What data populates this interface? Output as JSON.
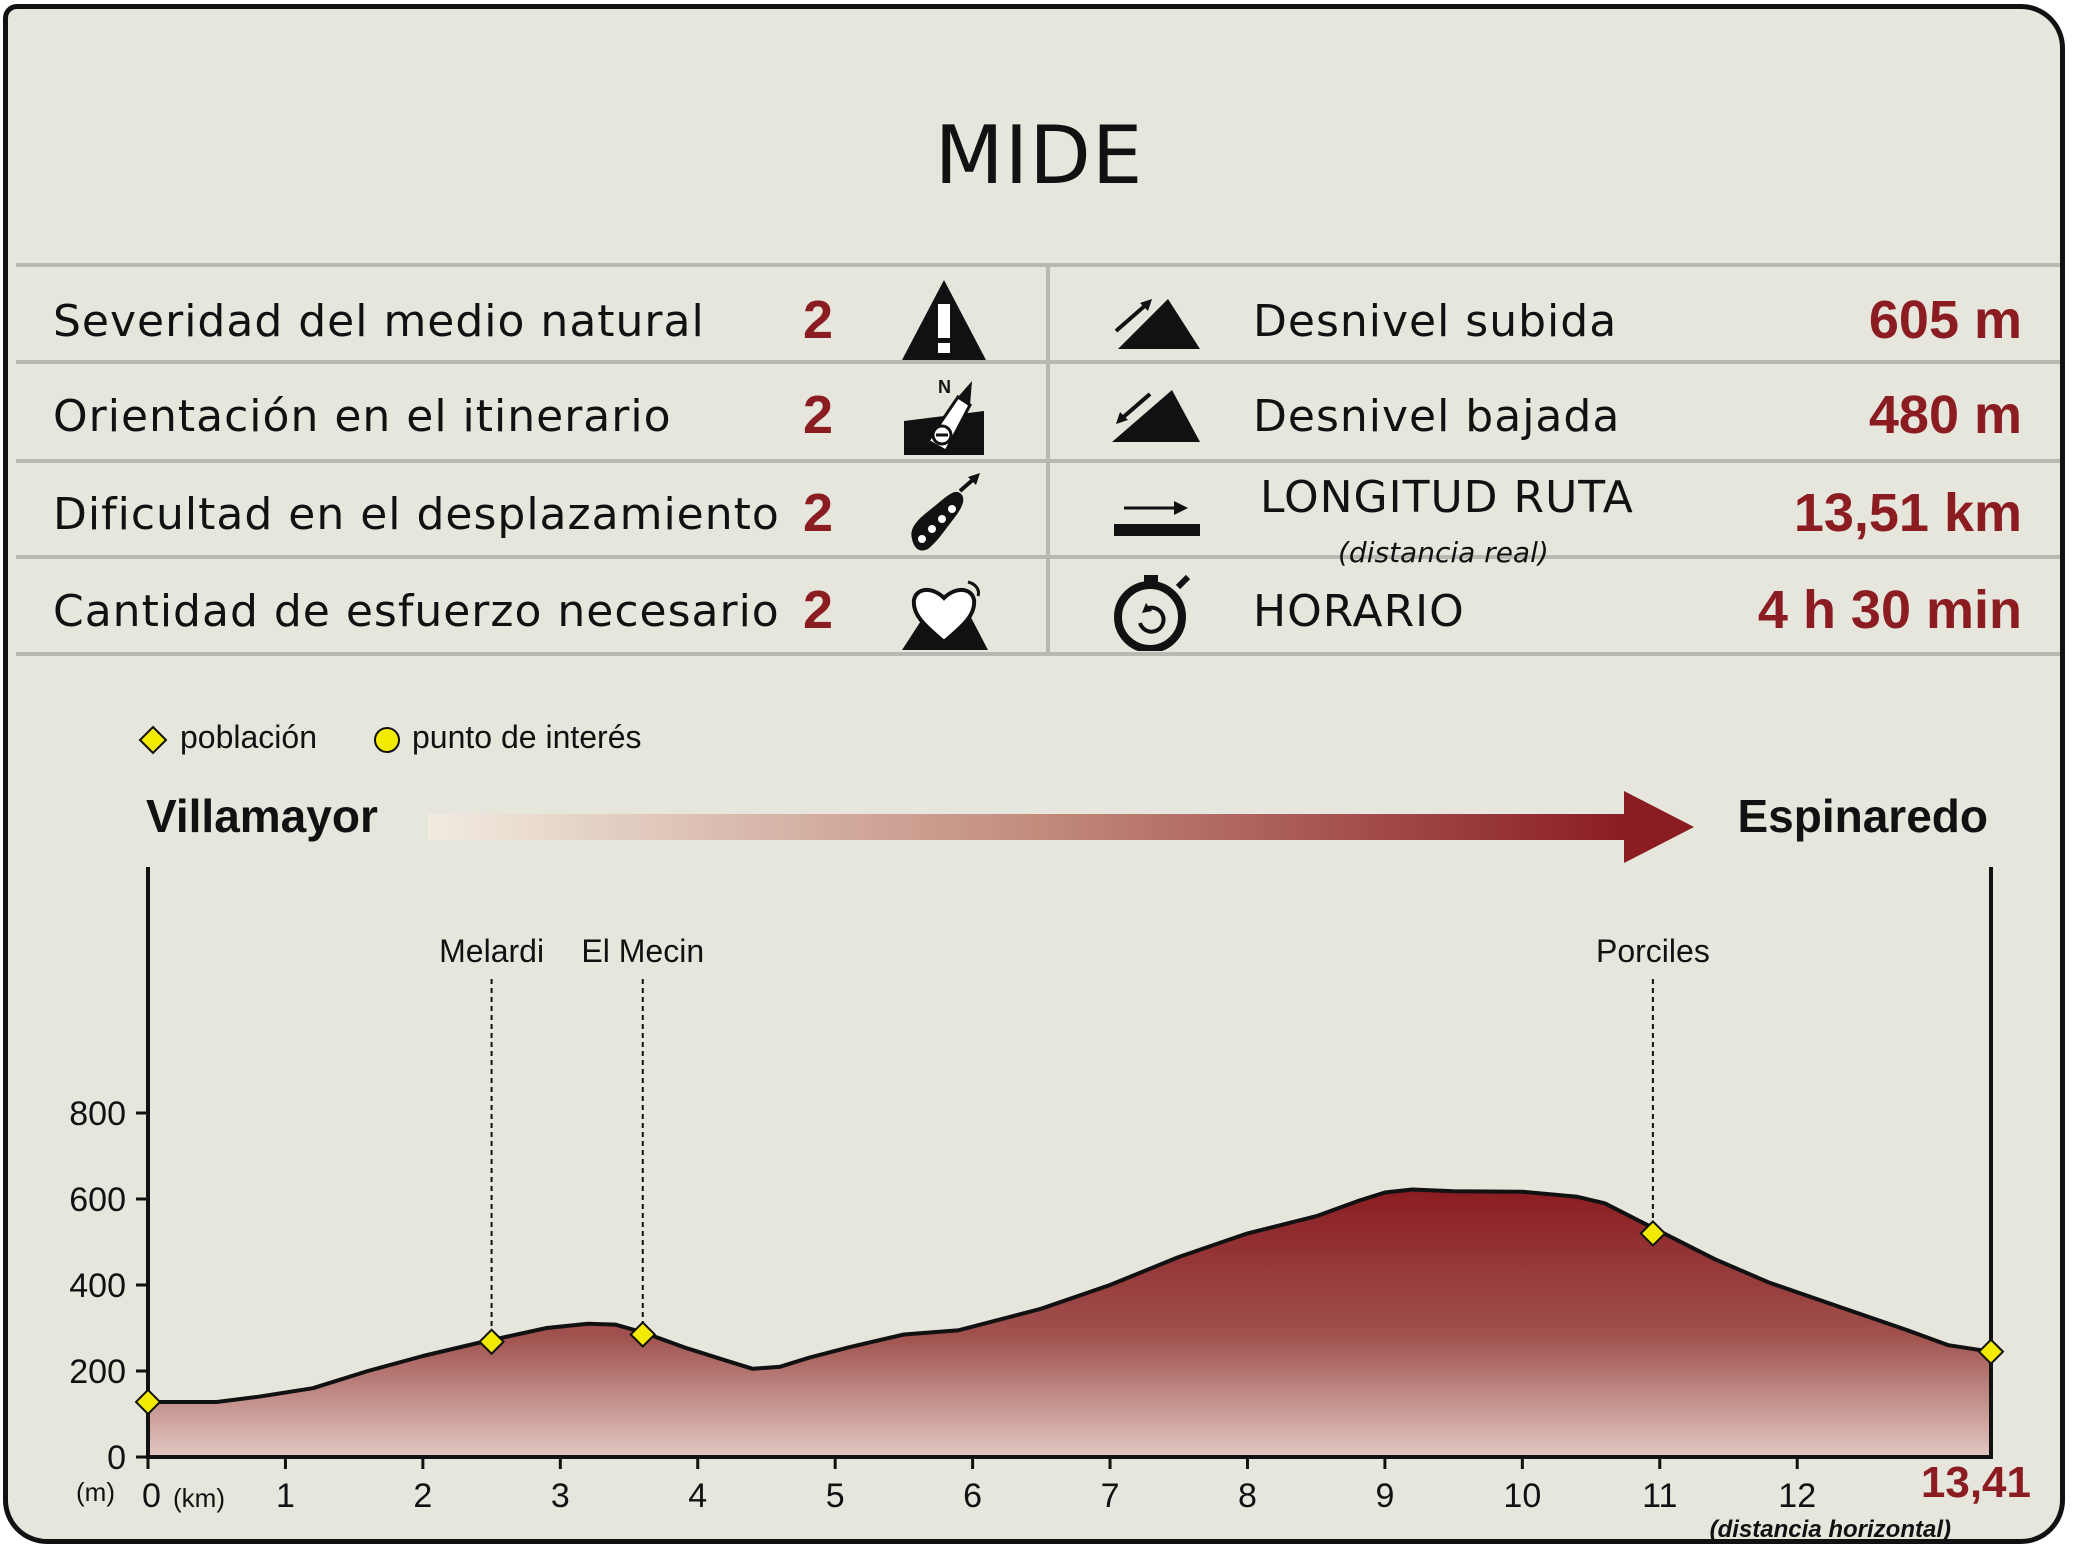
{
  "title": "MIDE",
  "mide": [
    {
      "label": "Severidad del medio natural",
      "score": "2",
      "icon": "warning-triangle-icon"
    },
    {
      "label": "Orientación en el itinerario",
      "score": "2",
      "icon": "compass-map-icon"
    },
    {
      "label": "Dificultad en el desplazamiento",
      "score": "2",
      "icon": "boot-print-icon"
    },
    {
      "label": "Cantidad de esfuerzo necesario",
      "score": "2",
      "icon": "heart-mountain-icon"
    }
  ],
  "stats": [
    {
      "label": "Desnivel subida",
      "value": "605 m",
      "icon": "ascent-icon"
    },
    {
      "label": "Desnivel bajada",
      "value": "480 m",
      "icon": "descent-icon"
    },
    {
      "label": "LONGITUD RUTA",
      "sublabel": "(distancia real)",
      "value": "13,51 km",
      "icon": "distance-arrow-icon"
    },
    {
      "label": "HORARIO",
      "value": "4 h 30 min",
      "icon": "stopwatch-icon"
    }
  ],
  "legend": {
    "town": "población",
    "poi": "punto de interés"
  },
  "route": {
    "from": "Villamayor",
    "to": "Espinaredo"
  },
  "colors": {
    "accent": "#8a1c22",
    "background": "#e6e6dc",
    "marker": "#f2ea00"
  },
  "chart_data": {
    "type": "area",
    "y_unit_label": "(m)",
    "x_unit_label": "(km)",
    "x_end_label": "13,41",
    "x_end_note": "(distancia horizontal)",
    "ylim": [
      0,
      800
    ],
    "yticks": [
      0,
      200,
      400,
      600,
      800
    ],
    "xlim": [
      0,
      13.41
    ],
    "xticks": [
      0,
      1,
      2,
      3,
      4,
      5,
      6,
      7,
      8,
      9,
      10,
      11,
      12
    ],
    "profile": {
      "x": [
        0,
        0.5,
        0.8,
        1.2,
        1.6,
        2.0,
        2.4,
        2.9,
        3.2,
        3.4,
        3.6,
        3.9,
        4.2,
        4.4,
        4.6,
        4.8,
        5.1,
        5.5,
        5.9,
        6.5,
        7.0,
        7.5,
        8.0,
        8.5,
        8.8,
        9.0,
        9.2,
        9.5,
        10.0,
        10.4,
        10.6,
        11.0,
        11.4,
        11.8,
        12.3,
        12.8,
        13.1,
        13.41
      ],
      "y": [
        128,
        128,
        140,
        160,
        200,
        235,
        265,
        300,
        310,
        308,
        290,
        255,
        225,
        205,
        210,
        230,
        255,
        285,
        295,
        345,
        400,
        465,
        520,
        560,
        595,
        615,
        622,
        618,
        617,
        605,
        590,
        525,
        460,
        405,
        350,
        295,
        260,
        245
      ]
    },
    "points": [
      {
        "x": 0,
        "y": 128,
        "kind": "town"
      },
      {
        "x": 2.5,
        "y": 268,
        "kind": "town",
        "name": "Melardi"
      },
      {
        "x": 3.6,
        "y": 285,
        "kind": "town",
        "name": "El Mecin"
      },
      {
        "x": 10.95,
        "y": 520,
        "kind": "town",
        "name": "Porciles"
      },
      {
        "x": 13.41,
        "y": 245,
        "kind": "town"
      }
    ]
  }
}
